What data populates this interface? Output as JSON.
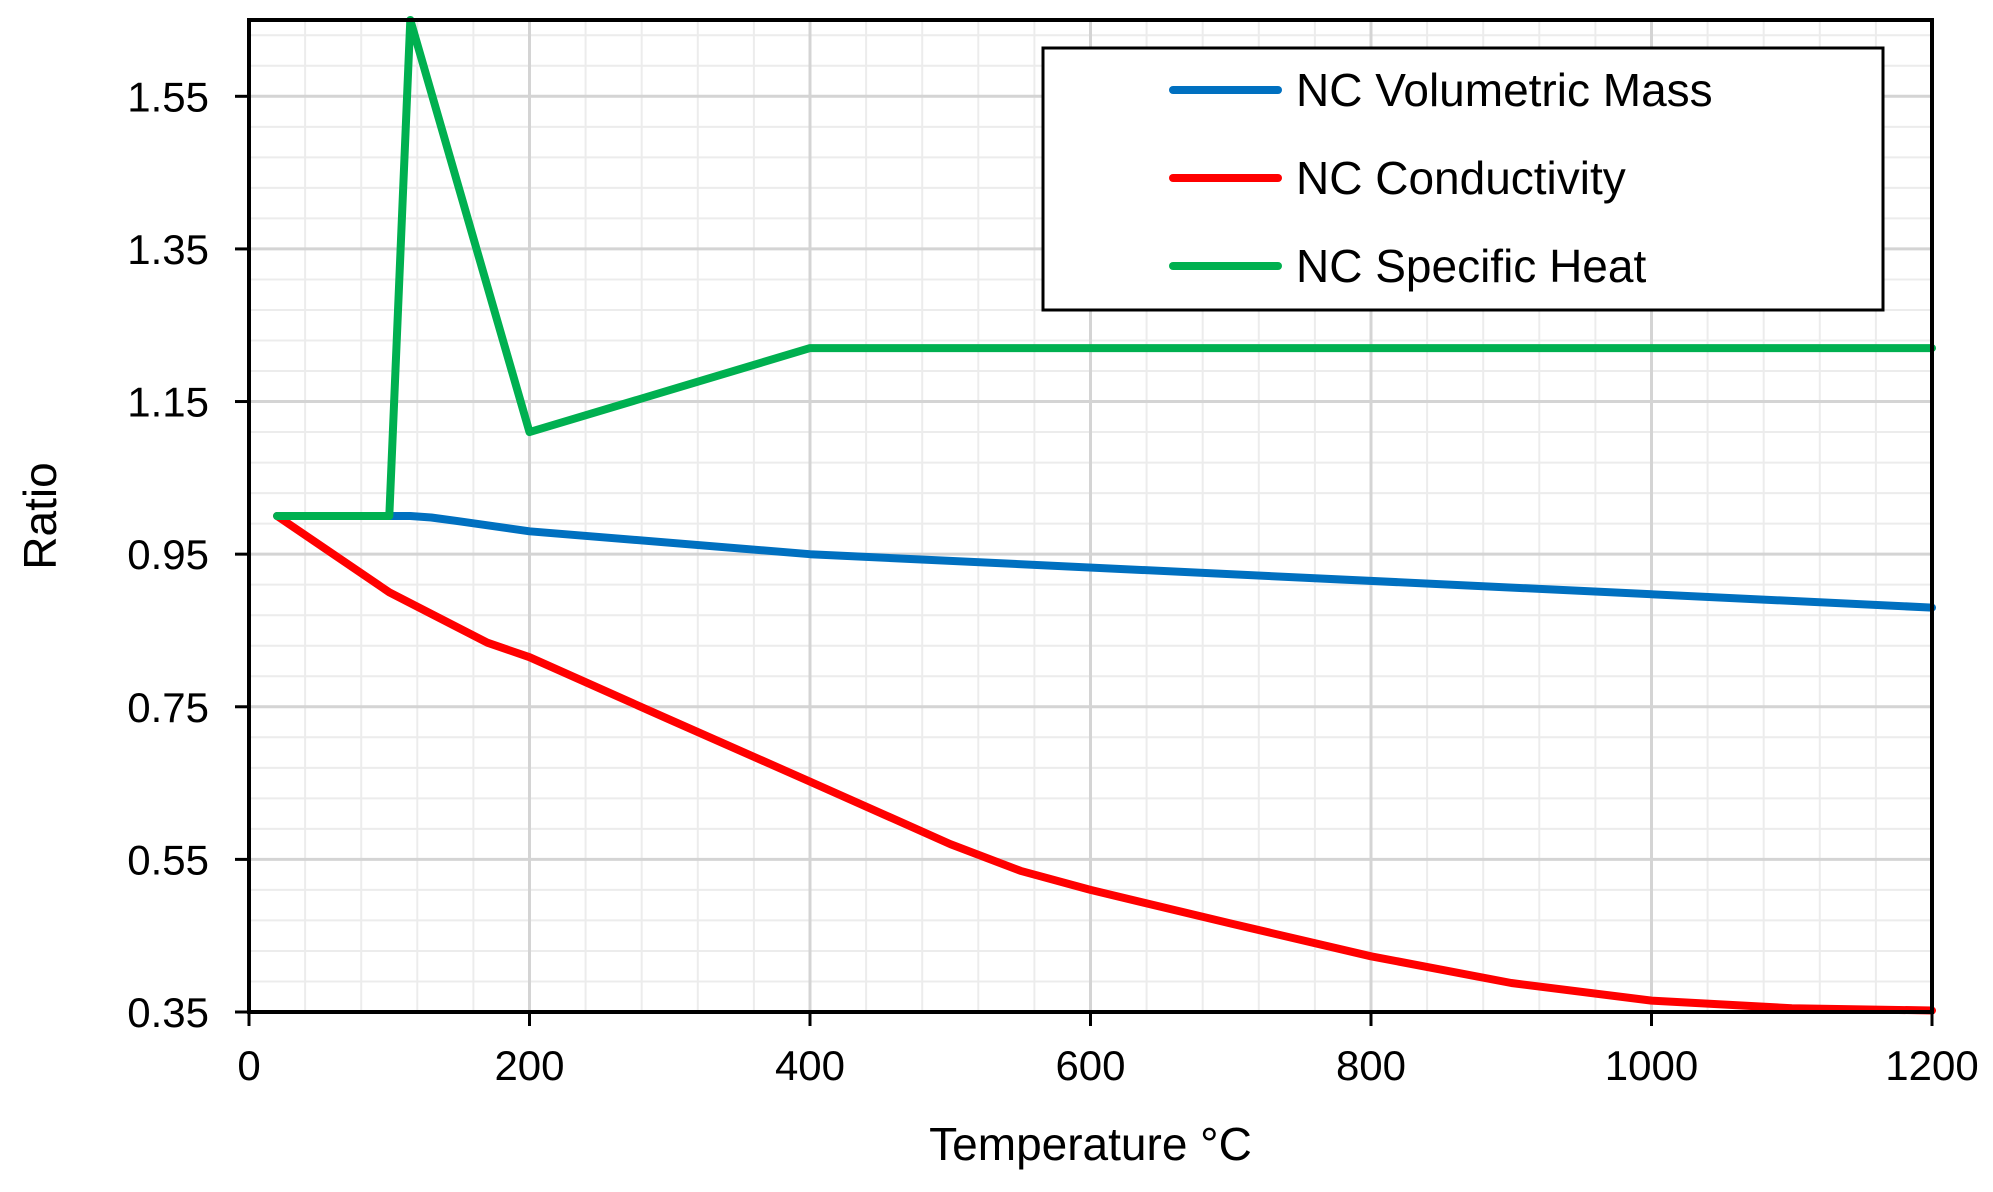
{
  "chart_data": {
    "type": "line",
    "title": "",
    "xlabel": "Temperature °C",
    "ylabel": "Ratio",
    "xlim": [
      0,
      1200
    ],
    "ylim": [
      0.35,
      1.65
    ],
    "x_ticks": [
      0,
      200,
      400,
      600,
      800,
      1000,
      1200
    ],
    "x_tick_labels": [
      "0",
      "200",
      "400",
      "600",
      "800",
      "1000",
      "1200"
    ],
    "y_ticks": [
      0.35,
      0.55,
      0.75,
      0.95,
      1.15,
      1.35,
      1.55
    ],
    "y_tick_labels": [
      "0.35",
      "0.55",
      "0.75",
      "0.95",
      "1.15",
      "1.35",
      "1.55"
    ],
    "x_minor_step": 40,
    "y_minor_step": 0.04,
    "grid": true,
    "legend_position": "top-right",
    "series": [
      {
        "name": "NC Volumetric Mass",
        "color": "#0070c0",
        "x": [
          20,
          100,
          115,
          130,
          150,
          200,
          400,
          1200
        ],
        "y": [
          1.0,
          1.0,
          1.0,
          0.998,
          0.993,
          0.98,
          0.95,
          0.88
        ]
      },
      {
        "name": "NC Conductivity",
        "color": "#ff0000",
        "x": [
          20,
          100,
          170,
          200,
          300,
          400,
          500,
          550,
          600,
          700,
          800,
          900,
          1000,
          1100,
          1200
        ],
        "y": [
          1.0,
          0.9,
          0.834,
          0.815,
          0.733,
          0.652,
          0.57,
          0.535,
          0.51,
          0.466,
          0.423,
          0.388,
          0.365,
          0.355,
          0.352
        ]
      },
      {
        "name": "NC Specific Heat",
        "color": "#00b050",
        "x": [
          20,
          100,
          115,
          200,
          400,
          1200
        ],
        "y": [
          1.0,
          1.0,
          1.65,
          1.11,
          1.22,
          1.22
        ]
      }
    ]
  }
}
